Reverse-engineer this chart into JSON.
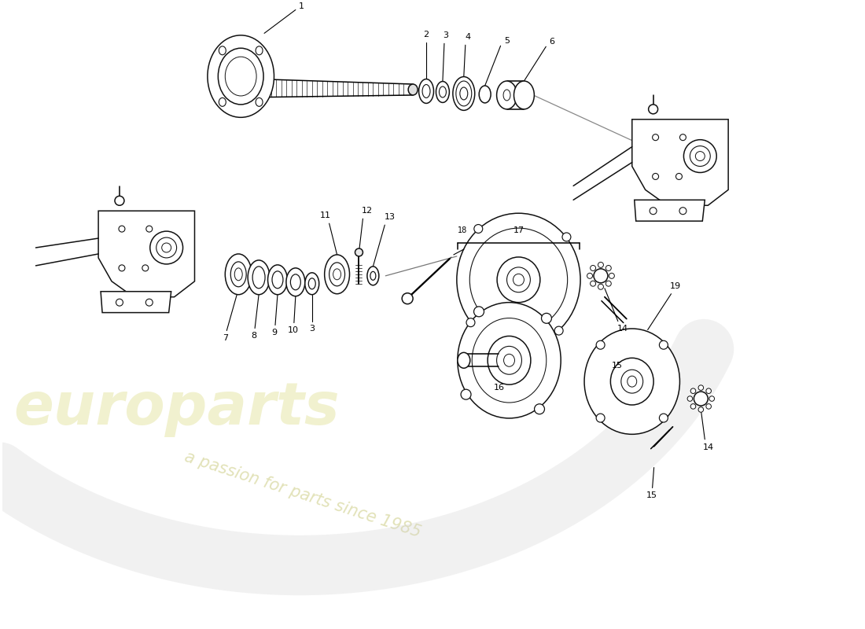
{
  "background_color": "#ffffff",
  "watermark_text1": "europarts",
  "watermark_text2": "a passion for parts since 1985",
  "watermark_color1": "#e8e8b0",
  "watermark_color2": "#d8d8a0",
  "line_color": "#111111",
  "fig_width": 11.0,
  "fig_height": 8.0,
  "swoosh_color": "#d0d0d0"
}
